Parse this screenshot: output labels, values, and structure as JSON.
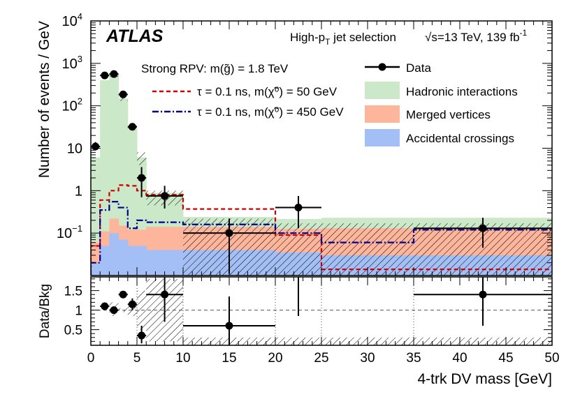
{
  "chart_data": {
    "type": "histogram",
    "experiment": "ATLAS",
    "selection": "High-p",
    "selection_sub": "T",
    "selection_suffix": " jet selection",
    "energy_label": "√s=13 TeV, 139 fb",
    "lumi_sup": "-1",
    "signal_header": "Strong RPV: m(g̃) = 1.8 TeV",
    "xlabel": "4-trk DV mass [GeV]",
    "ylabel_top": "Number of events / GeV",
    "ylabel_ratio": "Data/Bkg",
    "xlim": [
      0,
      50
    ],
    "ylim_log": [
      0.01,
      10000
    ],
    "ratio_ylim": [
      0.1,
      1.85
    ],
    "bin_edges": [
      0,
      1,
      2,
      3,
      4,
      5,
      6,
      10,
      20,
      25,
      35,
      50
    ],
    "x_ticks": [
      0,
      5,
      10,
      15,
      20,
      25,
      30,
      35,
      40,
      45,
      50
    ],
    "x_tick_labels": [
      "0",
      "5",
      "10",
      "15",
      "20",
      "25",
      "30",
      "35",
      "40",
      "45",
      "50"
    ],
    "y_tick_labels": [
      {
        "v": 10000,
        "base": "10",
        "exp": "4"
      },
      {
        "v": 1000,
        "base": "10",
        "exp": "3"
      },
      {
        "v": 100,
        "base": "10",
        "exp": "2"
      },
      {
        "v": 10,
        "base": "10",
        "exp": ""
      },
      {
        "v": 1,
        "base": "1",
        "exp": ""
      },
      {
        "v": 0.1,
        "base": "10",
        "exp": "−1"
      }
    ],
    "ratio_ticks": [
      {
        "v": 0.5,
        "label": "0.5"
      },
      {
        "v": 1.0,
        "label": "1"
      },
      {
        "v": 1.5,
        "label": "1.5"
      }
    ],
    "background_stack": [
      {
        "name": "Accidental crossings",
        "color": "#a4bff5",
        "values": [
          0.02,
          0.05,
          0.1,
          0.07,
          0.05,
          0.05,
          0.04,
          0.04,
          0.035,
          0.03,
          0.03
        ]
      },
      {
        "name": "Merged vertices",
        "color": "#fdb59c",
        "values": [
          0.04,
          0.06,
          0.12,
          0.08,
          0.07,
          0.07,
          0.1,
          0.1,
          0.09,
          0.1,
          0.1
        ]
      },
      {
        "name": "Hadronic interactions",
        "color": "#cbe8c9",
        "values": [
          6,
          400,
          500,
          150,
          30,
          6,
          0.75,
          0.1,
          0.09,
          0.1,
          0.1
        ]
      }
    ],
    "signals": [
      {
        "name": "τ = 0.1 ns, m(χ̃⁰) = 50 GeV",
        "color": "#cc0000",
        "style": "dashed",
        "values": [
          0.05,
          0.6,
          1.0,
          1.35,
          1.3,
          1.0,
          0.8,
          0.37,
          0.09,
          0.014,
          0.014
        ]
      },
      {
        "name": "τ = 0.1 ns, m(χ̃⁰) = 450 GeV",
        "color": "#00008b",
        "style": "dashdot",
        "values": [
          0.02,
          0.35,
          0.55,
          0.4,
          0.13,
          0.2,
          0.18,
          0.16,
          0.1,
          0.06,
          0.12
        ]
      }
    ],
    "data": {
      "name": "Data",
      "points": [
        {
          "x": 0.5,
          "xerr": 0.5,
          "y": 11,
          "ylo": 9,
          "yhi": 14,
          "ratio": null
        },
        {
          "x": 1.5,
          "xerr": 0.5,
          "y": 520,
          "ylo": 500,
          "yhi": 540,
          "ratio": 1.1
        },
        {
          "x": 2.5,
          "xerr": 0.5,
          "y": 560,
          "ylo": 540,
          "yhi": 580,
          "ratio": 1.0
        },
        {
          "x": 3.5,
          "xerr": 0.5,
          "y": 185,
          "ylo": 170,
          "yhi": 200,
          "ratio": 1.4
        },
        {
          "x": 4.5,
          "xerr": 0.5,
          "y": 32,
          "ylo": 27,
          "yhi": 38,
          "ratio": 1.15
        },
        {
          "x": 5.5,
          "xerr": 0.5,
          "y": 2.0,
          "ylo": 0.7,
          "yhi": 3.6,
          "ratio": 0.35
        },
        {
          "x": 8.0,
          "xerr": 2.0,
          "y": 0.75,
          "ylo": 0.38,
          "yhi": 1.3,
          "ratio": 1.4
        },
        {
          "x": 15.0,
          "xerr": 5.0,
          "y": 0.1,
          "ylo": 0.011,
          "yhi": 0.22,
          "ratio": 0.6
        },
        {
          "x": 22.5,
          "xerr": 2.5,
          "y": 0.4,
          "ylo": 0.13,
          "yhi": 0.75,
          "ratio": 2.8
        },
        {
          "x": 42.5,
          "xerr": 7.5,
          "y": 0.13,
          "ylo": 0.045,
          "yhi": 0.23,
          "ratio": 1.4
        }
      ],
      "ratio_errors": [
        null,
        [
          1.05,
          1.15
        ],
        [
          0.95,
          1.05
        ],
        [
          1.32,
          1.48
        ],
        [
          1.0,
          1.3
        ],
        [
          0.15,
          0.6
        ],
        [
          0.7,
          2.2
        ],
        [
          0.1,
          1.35
        ],
        [
          0.85,
          2.6
        ],
        [
          0.6,
          2.2
        ]
      ]
    },
    "uncertainty_band": {
      "name": "Background uncertainty",
      "lo": [
        null,
        null,
        0.85,
        0.95,
        0.85,
        0.5,
        0.2,
        0.005,
        0.005,
        0.005,
        0.005
      ],
      "hi": [
        null,
        null,
        1.2,
        1.05,
        1.2,
        1.5,
        1.8,
        0.3,
        0.3,
        0.3,
        0.3
      ],
      "abs_lo": [
        null,
        null,
        480,
        130,
        28,
        4,
        0.45,
        0.01,
        0.01,
        0.01,
        0.01
      ],
      "abs_hi": [
        null,
        null,
        600,
        170,
        35,
        8,
        1.0,
        0.22,
        0.17,
        0.17,
        0.17
      ]
    },
    "legend": [
      "Data",
      "Hadronic interactions",
      "Merged vertices",
      "Accidental crossings"
    ]
  }
}
